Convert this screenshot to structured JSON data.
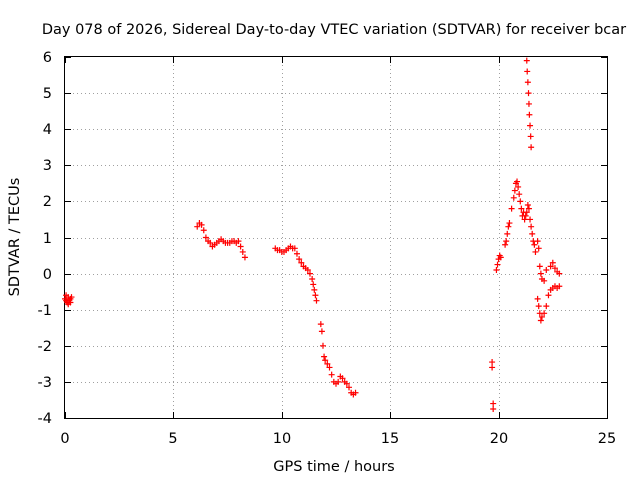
{
  "chart_data": {
    "type": "scatter",
    "title": "Day 078 of 2026, Sidereal Day-to-day VTEC variation (SDTVAR) for receiver bcar",
    "xlabel": "GPS time / hours",
    "ylabel": "SDTVAR / TECUs",
    "xlim": [
      0,
      25
    ],
    "ylim": [
      -4,
      6
    ],
    "x_ticks": [
      0,
      5,
      10,
      15,
      20,
      25
    ],
    "x_tick_labels": [
      "0",
      "5",
      "10",
      "15",
      "20",
      "25"
    ],
    "y_ticks": [
      -4,
      -3,
      -2,
      -1,
      0,
      1,
      2,
      3,
      4,
      5,
      6
    ],
    "y_tick_labels": [
      "-4",
      "-3",
      "-2",
      "-1",
      "0",
      "1",
      "2",
      "3",
      "4",
      "5",
      "6"
    ],
    "grid": true,
    "marker": "+",
    "color": "#ff0000",
    "segments": [
      {
        "name": "segment-1",
        "points": [
          [
            0.0,
            -0.7
          ],
          [
            0.05,
            -0.75
          ],
          [
            0.1,
            -0.8
          ],
          [
            0.15,
            -0.85
          ],
          [
            0.2,
            -0.75
          ],
          [
            0.25,
            -0.7
          ],
          [
            0.3,
            -0.65
          ],
          [
            0.05,
            -0.6
          ],
          [
            0.15,
            -0.65
          ],
          [
            0.25,
            -0.8
          ]
        ]
      },
      {
        "name": "segment-2",
        "points": [
          [
            6.1,
            1.3
          ],
          [
            6.2,
            1.4
          ],
          [
            6.3,
            1.35
          ],
          [
            6.4,
            1.2
          ],
          [
            6.5,
            1.0
          ],
          [
            6.6,
            0.9
          ],
          [
            6.7,
            0.85
          ],
          [
            6.8,
            0.75
          ],
          [
            6.9,
            0.8
          ],
          [
            7.0,
            0.85
          ],
          [
            7.1,
            0.9
          ],
          [
            7.2,
            0.95
          ],
          [
            7.3,
            0.9
          ],
          [
            7.4,
            0.85
          ],
          [
            7.5,
            0.85
          ],
          [
            7.6,
            0.85
          ],
          [
            7.7,
            0.9
          ],
          [
            7.8,
            0.9
          ],
          [
            7.9,
            0.85
          ],
          [
            8.0,
            0.9
          ],
          [
            8.1,
            0.75
          ],
          [
            8.2,
            0.6
          ],
          [
            8.3,
            0.45
          ]
        ]
      },
      {
        "name": "segment-3",
        "points": [
          [
            9.7,
            0.7
          ],
          [
            9.8,
            0.65
          ],
          [
            9.9,
            0.65
          ],
          [
            10.0,
            0.6
          ],
          [
            10.1,
            0.6
          ],
          [
            10.2,
            0.65
          ],
          [
            10.3,
            0.7
          ],
          [
            10.4,
            0.75
          ],
          [
            10.5,
            0.7
          ],
          [
            10.6,
            0.7
          ],
          [
            10.7,
            0.55
          ],
          [
            10.8,
            0.4
          ],
          [
            10.9,
            0.3
          ],
          [
            11.0,
            0.2
          ],
          [
            11.1,
            0.15
          ],
          [
            11.2,
            0.1
          ],
          [
            11.3,
            0.0
          ],
          [
            11.4,
            -0.15
          ],
          [
            11.45,
            -0.3
          ],
          [
            11.5,
            -0.45
          ],
          [
            11.55,
            -0.6
          ],
          [
            11.6,
            -0.75
          ],
          [
            11.8,
            -1.4
          ],
          [
            11.85,
            -1.6
          ],
          [
            11.9,
            -2.0
          ],
          [
            11.95,
            -2.3
          ],
          [
            12.0,
            -2.4
          ],
          [
            12.1,
            -2.5
          ],
          [
            12.2,
            -2.6
          ],
          [
            12.3,
            -2.8
          ],
          [
            12.4,
            -3.0
          ],
          [
            12.5,
            -3.05
          ],
          [
            12.6,
            -3.0
          ],
          [
            12.7,
            -2.85
          ],
          [
            12.8,
            -2.9
          ],
          [
            12.9,
            -3.0
          ],
          [
            13.0,
            -3.05
          ],
          [
            13.1,
            -3.15
          ],
          [
            13.2,
            -3.3
          ],
          [
            13.3,
            -3.35
          ],
          [
            13.4,
            -3.3
          ]
        ]
      },
      {
        "name": "segment-4",
        "points": [
          [
            19.7,
            -2.45
          ],
          [
            19.7,
            -2.6
          ],
          [
            19.75,
            -3.6
          ],
          [
            19.75,
            -3.75
          ]
        ]
      },
      {
        "name": "segment-5",
        "points": [
          [
            19.9,
            0.1
          ],
          [
            19.95,
            0.25
          ],
          [
            20.0,
            0.4
          ],
          [
            20.05,
            0.5
          ],
          [
            20.1,
            0.45
          ],
          [
            20.3,
            0.8
          ],
          [
            20.35,
            0.9
          ],
          [
            20.4,
            1.1
          ],
          [
            20.45,
            1.3
          ],
          [
            20.5,
            1.4
          ],
          [
            20.6,
            1.8
          ],
          [
            20.7,
            2.1
          ],
          [
            20.75,
            2.3
          ],
          [
            20.8,
            2.5
          ],
          [
            20.85,
            2.55
          ],
          [
            20.9,
            2.4
          ],
          [
            20.95,
            2.2
          ],
          [
            21.0,
            2.0
          ],
          [
            21.05,
            1.8
          ],
          [
            21.1,
            1.6
          ],
          [
            21.15,
            1.7
          ],
          [
            21.2,
            1.5
          ],
          [
            21.25,
            1.6
          ],
          [
            21.3,
            1.7
          ],
          [
            21.35,
            1.9
          ],
          [
            21.4,
            1.8
          ],
          [
            21.45,
            1.5
          ],
          [
            21.5,
            1.3
          ],
          [
            21.55,
            1.1
          ],
          [
            21.6,
            0.9
          ],
          [
            21.65,
            0.8
          ],
          [
            21.7,
            0.6
          ],
          [
            21.3,
            5.9
          ],
          [
            21.32,
            5.6
          ],
          [
            21.35,
            5.3
          ],
          [
            21.38,
            5.0
          ],
          [
            21.4,
            4.7
          ],
          [
            21.42,
            4.4
          ],
          [
            21.45,
            4.1
          ],
          [
            21.48,
            3.8
          ],
          [
            21.5,
            3.5
          ],
          [
            21.8,
            0.9
          ],
          [
            21.85,
            0.7
          ],
          [
            21.9,
            0.2
          ],
          [
            21.95,
            0.0
          ],
          [
            22.0,
            -0.15
          ],
          [
            22.1,
            -0.2
          ],
          [
            22.2,
            0.1
          ],
          [
            21.8,
            -0.7
          ],
          [
            21.85,
            -0.9
          ],
          [
            21.9,
            -1.1
          ],
          [
            21.95,
            -1.3
          ],
          [
            22.0,
            -1.2
          ],
          [
            22.1,
            -1.1
          ],
          [
            22.2,
            -0.9
          ],
          [
            22.3,
            -0.6
          ],
          [
            22.4,
            -0.45
          ],
          [
            22.5,
            -0.4
          ],
          [
            22.6,
            -0.35
          ],
          [
            22.7,
            -0.4
          ],
          [
            22.8,
            -0.35
          ],
          [
            22.4,
            0.2
          ],
          [
            22.5,
            0.3
          ],
          [
            22.6,
            0.15
          ],
          [
            22.7,
            0.05
          ],
          [
            22.8,
            0.0
          ]
        ]
      }
    ]
  }
}
